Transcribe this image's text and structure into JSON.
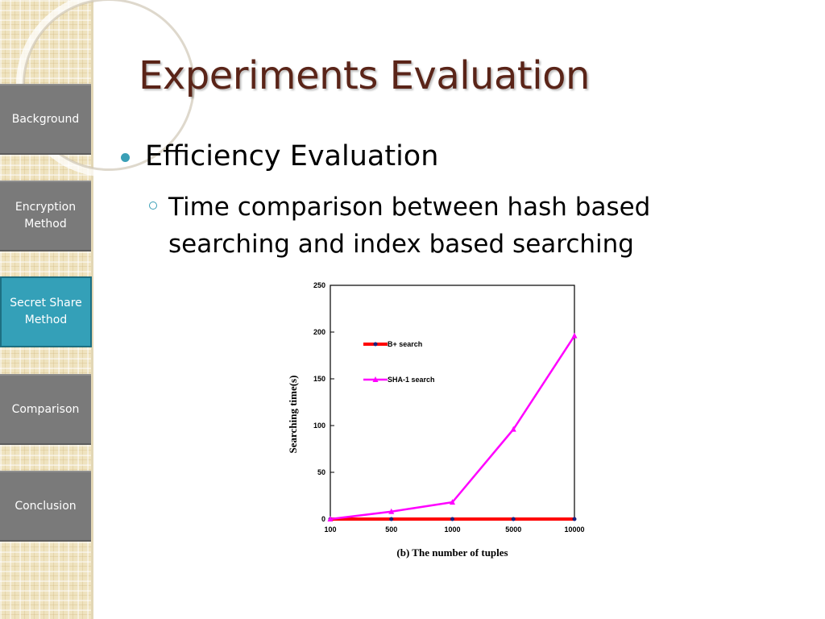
{
  "sidebar": {
    "items": [
      {
        "label": "Background",
        "active": false
      },
      {
        "label": "Encryption Method",
        "active": false
      },
      {
        "label": "Secret Share Method",
        "active": true
      },
      {
        "label": "Comparison",
        "active": false
      },
      {
        "label": "Conclusion",
        "active": false
      }
    ]
  },
  "slide": {
    "title": "Experiments Evaluation",
    "bullet_1": "Efficiency Evaluation",
    "bullet_2": "Time comparison between hash based searching and index based searching"
  },
  "colors": {
    "title": "#5a2418",
    "accent": "#3a9fb6",
    "tab": "#7a7a7a",
    "tab_active": "#34a0b8",
    "series_bplus": "#ff0000",
    "series_sha1": "#ff00ff"
  },
  "chart_data": {
    "type": "line",
    "categories": [
      "100",
      "500",
      "1000",
      "5000",
      "10000"
    ],
    "series": [
      {
        "name": "B+ search",
        "values": [
          0,
          0,
          0,
          0,
          0
        ]
      },
      {
        "name": "SHA-1 search",
        "values": [
          0,
          8,
          18,
          96,
          196
        ]
      }
    ],
    "ylim": [
      0,
      250
    ],
    "yticks": [
      0,
      50,
      100,
      150,
      200,
      250
    ],
    "xlabel": "(b) The number of tuples",
    "ylabel": "Searching time(s)",
    "legend": "upper-left inside plot",
    "grid": false
  }
}
